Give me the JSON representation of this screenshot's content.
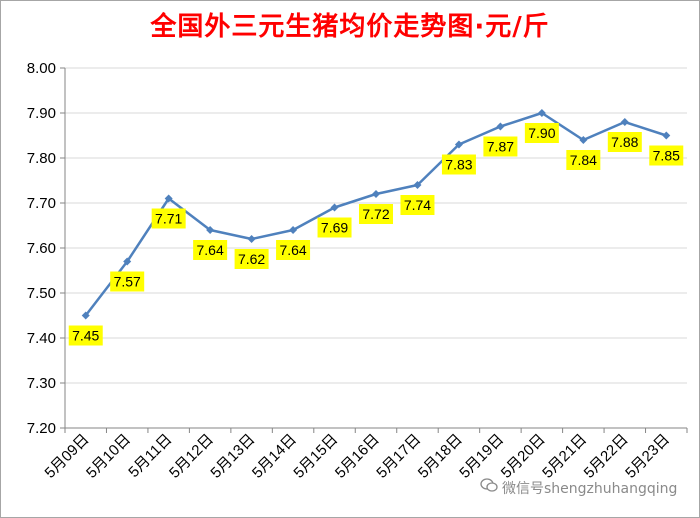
{
  "title": "全国外三元生猪均价走势图·元/斤",
  "watermark": "微信号shengzhuhangqing",
  "colors": {
    "line": "#4f81bd",
    "label_bg": "#ffff00",
    "title": "#ff0000",
    "grid": "#d9d9d9"
  },
  "chart_data": {
    "type": "line",
    "title": "全国外三元生猪均价走势图·元/斤",
    "xlabel": "",
    "ylabel": "",
    "categories": [
      "5月09日",
      "5月10日",
      "5月11日",
      "5月12日",
      "5月13日",
      "5月14日",
      "5月15日",
      "5月16日",
      "5月17日",
      "5月18日",
      "5月19日",
      "5月20日",
      "5月21日",
      "5月22日",
      "5月23日"
    ],
    "series": [
      {
        "values": [
          7.45,
          7.57,
          7.71,
          7.64,
          7.62,
          7.64,
          7.69,
          7.72,
          7.74,
          7.83,
          7.87,
          7.9,
          7.84,
          7.88,
          7.85
        ],
        "labels": [
          "7.45",
          "7.57",
          "7.71",
          "7.64",
          "7.62",
          "7.64",
          "7.69",
          "7.72",
          "7.74",
          "7.83",
          "7.87",
          "7.90",
          "7.84",
          "7.88",
          "7.85"
        ]
      }
    ],
    "ylim": [
      7.2,
      8.0
    ],
    "yticks": [
      "7.20",
      "7.30",
      "7.40",
      "7.50",
      "7.60",
      "7.70",
      "7.80",
      "7.90",
      "8.00"
    ],
    "grid": true,
    "legend": "none"
  }
}
